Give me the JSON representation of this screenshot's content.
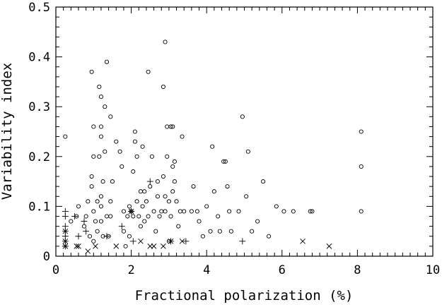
{
  "chart_data": {
    "type": "scatter",
    "title": "",
    "xlabel": "Fractional polarization (%)",
    "ylabel": "Variability index",
    "xlim": [
      0,
      10
    ],
    "ylim": [
      0,
      0.5
    ],
    "x_major_ticks": [
      0,
      2,
      4,
      6,
      8,
      10
    ],
    "y_major_ticks": [
      0,
      0.1,
      0.2,
      0.3,
      0.4,
      0.5
    ],
    "x_tick_labels": [
      "0",
      "2",
      "4",
      "6",
      "8",
      "10"
    ],
    "y_tick_labels": [
      "0",
      "0.1",
      "0.2",
      "0.3",
      "0.4",
      "0.5"
    ],
    "grid": false,
    "legend": "none",
    "series": [
      {
        "marker": "circle",
        "points": [
          [
            0.25,
            0.24
          ],
          [
            0.4,
            0.07
          ],
          [
            0.55,
            0.08
          ],
          [
            0.6,
            0.1
          ],
          [
            0.75,
            0.06
          ],
          [
            0.8,
            0.08
          ],
          [
            0.85,
            0.11
          ],
          [
            0.9,
            0.04
          ],
          [
            0.95,
            0.37
          ],
          [
            0.95,
            0.16
          ],
          [
            0.95,
            0.14
          ],
          [
            1.0,
            0.26
          ],
          [
            1.0,
            0.2
          ],
          [
            1.0,
            0.09
          ],
          [
            1.05,
            0.07
          ],
          [
            1.0,
            0.03
          ],
          [
            1.1,
            0.11
          ],
          [
            1.1,
            0.05
          ],
          [
            1.15,
            0.34
          ],
          [
            1.15,
            0.2
          ],
          [
            1.2,
            0.32
          ],
          [
            1.2,
            0.26
          ],
          [
            1.2,
            0.24
          ],
          [
            1.2,
            0.12
          ],
          [
            1.2,
            0.1
          ],
          [
            1.2,
            0.07
          ],
          [
            1.25,
            0.15
          ],
          [
            1.25,
            0.04
          ],
          [
            1.3,
            0.3
          ],
          [
            1.3,
            0.21
          ],
          [
            1.35,
            0.39
          ],
          [
            1.35,
            0.08
          ],
          [
            1.4,
            0.04
          ],
          [
            1.45,
            0.28
          ],
          [
            1.45,
            0.11
          ],
          [
            1.45,
            0.08
          ],
          [
            1.5,
            0.15
          ],
          [
            1.6,
            0.23
          ],
          [
            1.7,
            0.21
          ],
          [
            1.75,
            0.18
          ],
          [
            1.8,
            0.09
          ],
          [
            1.8,
            0.05
          ],
          [
            1.85,
            0.02
          ],
          [
            1.9,
            0.08
          ],
          [
            1.95,
            0.1
          ],
          [
            1.95,
            0.04
          ],
          [
            2.0,
            0.09
          ],
          [
            2.05,
            0.17
          ],
          [
            2.05,
            0.08
          ],
          [
            2.1,
            0.25
          ],
          [
            2.1,
            0.23
          ],
          [
            2.15,
            0.2
          ],
          [
            2.15,
            0.11
          ],
          [
            2.2,
            0.08
          ],
          [
            2.25,
            0.13
          ],
          [
            2.25,
            0.06
          ],
          [
            2.3,
            0.22
          ],
          [
            2.3,
            0.1
          ],
          [
            2.35,
            0.13
          ],
          [
            2.35,
            0.07
          ],
          [
            2.4,
            0.11
          ],
          [
            2.45,
            0.37
          ],
          [
            2.45,
            0.08
          ],
          [
            2.5,
            0.14
          ],
          [
            2.55,
            0.2
          ],
          [
            2.6,
            0.09
          ],
          [
            2.65,
            0.05
          ],
          [
            2.7,
            0.15
          ],
          [
            2.7,
            0.12
          ],
          [
            2.75,
            0.08
          ],
          [
            2.8,
            0.09
          ],
          [
            2.85,
            0.34
          ],
          [
            2.85,
            0.16
          ],
          [
            2.9,
            0.43
          ],
          [
            2.9,
            0.09
          ],
          [
            2.9,
            0.12
          ],
          [
            2.95,
            0.26
          ],
          [
            2.95,
            0.2
          ],
          [
            3.0,
            0.11
          ],
          [
            3.0,
            0.03
          ],
          [
            3.05,
            0.26
          ],
          [
            3.05,
            0.08
          ],
          [
            3.1,
            0.26
          ],
          [
            3.1,
            0.18
          ],
          [
            3.1,
            0.13
          ],
          [
            3.15,
            0.19
          ],
          [
            3.15,
            0.15
          ],
          [
            3.2,
            0.11
          ],
          [
            3.25,
            0.06
          ],
          [
            3.3,
            0.09
          ],
          [
            3.35,
            0.24
          ],
          [
            3.4,
            0.09
          ],
          [
            3.6,
            0.09
          ],
          [
            3.65,
            0.14
          ],
          [
            3.75,
            0.09
          ],
          [
            3.8,
            0.07
          ],
          [
            3.9,
            0.04
          ],
          [
            4.0,
            0.1
          ],
          [
            4.1,
            0.05
          ],
          [
            4.15,
            0.22
          ],
          [
            4.2,
            0.13
          ],
          [
            4.3,
            0.08
          ],
          [
            4.35,
            0.05
          ],
          [
            4.45,
            0.19
          ],
          [
            4.5,
            0.19
          ],
          [
            4.55,
            0.14
          ],
          [
            4.6,
            0.09
          ],
          [
            4.65,
            0.05
          ],
          [
            4.85,
            0.09
          ],
          [
            4.95,
            0.28
          ],
          [
            5.05,
            0.12
          ],
          [
            5.1,
            0.21
          ],
          [
            5.2,
            0.05
          ],
          [
            5.35,
            0.07
          ],
          [
            5.5,
            0.15
          ],
          [
            5.65,
            0.04
          ],
          [
            5.85,
            0.1
          ],
          [
            6.05,
            0.09
          ],
          [
            6.3,
            0.09
          ],
          [
            6.75,
            0.09
          ],
          [
            6.8,
            0.09
          ],
          [
            8.1,
            0.25
          ],
          [
            8.1,
            0.18
          ],
          [
            8.1,
            0.09
          ]
        ]
      },
      {
        "marker": "plus",
        "points": [
          [
            0.25,
            0.09
          ],
          [
            0.25,
            0.08
          ],
          [
            0.25,
            0.06
          ],
          [
            0.25,
            0.05
          ],
          [
            0.25,
            0.04
          ],
          [
            0.25,
            0.03
          ],
          [
            0.25,
            0.02
          ],
          [
            0.5,
            0.08
          ],
          [
            0.6,
            0.04
          ],
          [
            0.75,
            0.07
          ],
          [
            0.8,
            0.05
          ],
          [
            1.35,
            0.04
          ],
          [
            1.75,
            0.06
          ],
          [
            2.0,
            0.09
          ],
          [
            2.05,
            0.03
          ],
          [
            2.5,
            0.15
          ],
          [
            3.05,
            0.03
          ],
          [
            3.45,
            0.03
          ],
          [
            4.95,
            0.03
          ]
        ]
      },
      {
        "marker": "cross",
        "points": [
          [
            0.25,
            0.05
          ],
          [
            0.25,
            0.03
          ],
          [
            0.25,
            0.02
          ],
          [
            0.55,
            0.02
          ],
          [
            0.6,
            0.02
          ],
          [
            0.85,
            0.01
          ],
          [
            1.05,
            0.02
          ],
          [
            1.6,
            0.02
          ],
          [
            2.0,
            0.09
          ],
          [
            2.25,
            0.03
          ],
          [
            2.5,
            0.02
          ],
          [
            2.6,
            0.02
          ],
          [
            2.85,
            0.02
          ],
          [
            3.05,
            0.03
          ],
          [
            3.35,
            0.03
          ],
          [
            6.55,
            0.03
          ],
          [
            7.25,
            0.02
          ]
        ]
      }
    ]
  }
}
